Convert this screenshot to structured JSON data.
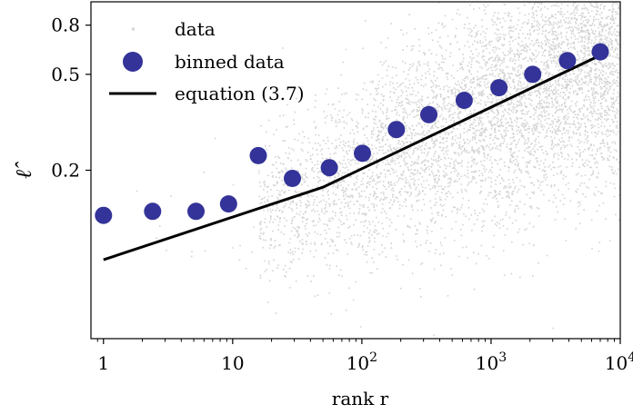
{
  "chart_data": {
    "type": "scatter",
    "title": "",
    "xlabel": "rank r",
    "ylabel": "ℓ̂",
    "xscale": "log",
    "xlim": [
      0.8,
      10000
    ],
    "ylim": [
      0.04,
      1.0
    ],
    "grid": false,
    "legend_position": "top-left",
    "x_ticks": [
      {
        "value": 1,
        "label": "1",
        "exp": ""
      },
      {
        "value": 10,
        "label": "10",
        "exp": ""
      },
      {
        "value": 100,
        "label": "10",
        "exp": "2"
      },
      {
        "value": 1000,
        "label": "10",
        "exp": "3"
      },
      {
        "value": 10000,
        "label": "10",
        "exp": "4"
      }
    ],
    "y_ticks": [
      {
        "value": 0.2,
        "label": "0.2"
      },
      {
        "value": 0.5,
        "label": "0.5"
      },
      {
        "value": 0.8,
        "label": "0.8"
      }
    ],
    "series": [
      {
        "name": "data",
        "kind": "scatter-cloud",
        "color": "#d3d3d3"
      },
      {
        "name": "binned data",
        "kind": "points",
        "color": "#333399",
        "points": [
          {
            "x": 1,
            "y": 0.13
          },
          {
            "x": 2.4,
            "y": 0.135
          },
          {
            "x": 5.2,
            "y": 0.135
          },
          {
            "x": 9.3,
            "y": 0.145
          },
          {
            "x": 15.8,
            "y": 0.23
          },
          {
            "x": 29,
            "y": 0.185
          },
          {
            "x": 56,
            "y": 0.205
          },
          {
            "x": 101,
            "y": 0.235
          },
          {
            "x": 185,
            "y": 0.295
          },
          {
            "x": 330,
            "y": 0.34
          },
          {
            "x": 620,
            "y": 0.39
          },
          {
            "x": 1150,
            "y": 0.44
          },
          {
            "x": 2100,
            "y": 0.5
          },
          {
            "x": 3900,
            "y": 0.57
          },
          {
            "x": 7000,
            "y": 0.62
          }
        ]
      },
      {
        "name": "equation (3.7)",
        "kind": "line",
        "color": "#000000",
        "points": [
          {
            "x": 1,
            "y": 0.085
          },
          {
            "x": 50,
            "y": 0.17
          },
          {
            "x": 7000,
            "y": 0.6
          }
        ]
      }
    ]
  }
}
